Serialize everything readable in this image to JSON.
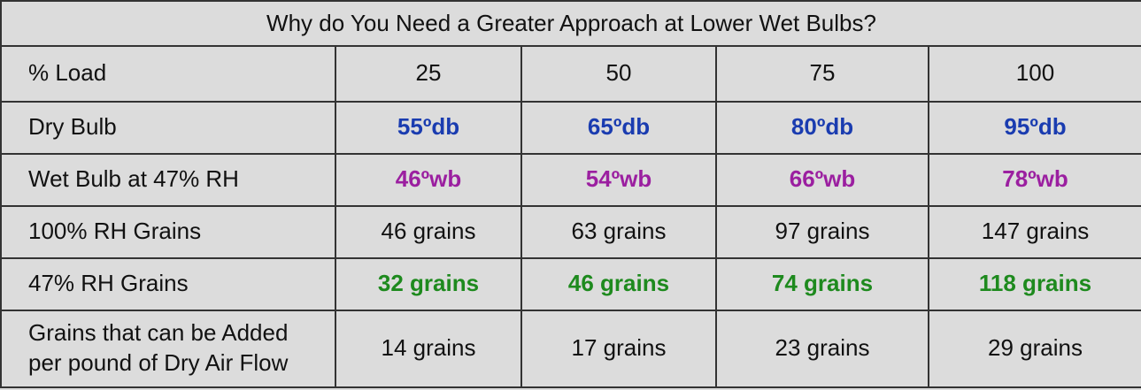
{
  "title": "Why do You Need a Greater Approach at Lower Wet Bulbs?",
  "table": {
    "header": [
      "% Load",
      "25",
      "50",
      "75",
      "100"
    ],
    "rows": [
      [
        "Dry Bulb",
        "55ºdb",
        "65ºdb",
        "80ºdb",
        "95ºdb"
      ],
      [
        "Wet Bulb at 47% RH",
        "46ºwb",
        "54ºwb",
        "66ºwb",
        "78ºwb"
      ],
      [
        "100% RH Grains",
        "46 grains",
        "63 grains",
        "97 grains",
        "147 grains"
      ],
      [
        "47% RH Grains",
        "32 grains",
        "46 grains",
        "74 grains",
        "118 grains"
      ],
      [
        [
          "Grains that can be Added",
          "per pound of Dry Air Flow"
        ],
        "14 grains",
        "17 grains",
        "23 grains",
        "29 grains"
      ]
    ]
  }
}
